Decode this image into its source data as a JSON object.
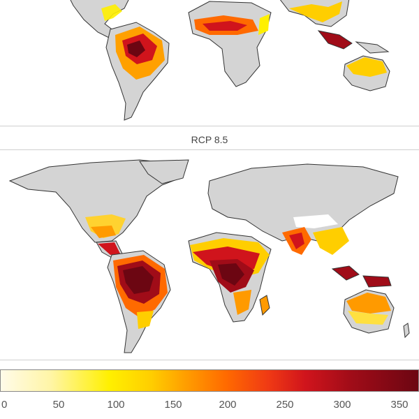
{
  "panels": [
    {
      "title": ""
    },
    {
      "title": "RCP 8.5"
    }
  ],
  "colorbar": {
    "ticks": [
      "0",
      "50",
      "100",
      "150",
      "200",
      "250",
      "300",
      "350"
    ],
    "colors": [
      "#fffbe9",
      "#fff000",
      "#ff9a00",
      "#d0141c",
      "#6c0612"
    ]
  },
  "land_color": "#d4d4d4"
}
